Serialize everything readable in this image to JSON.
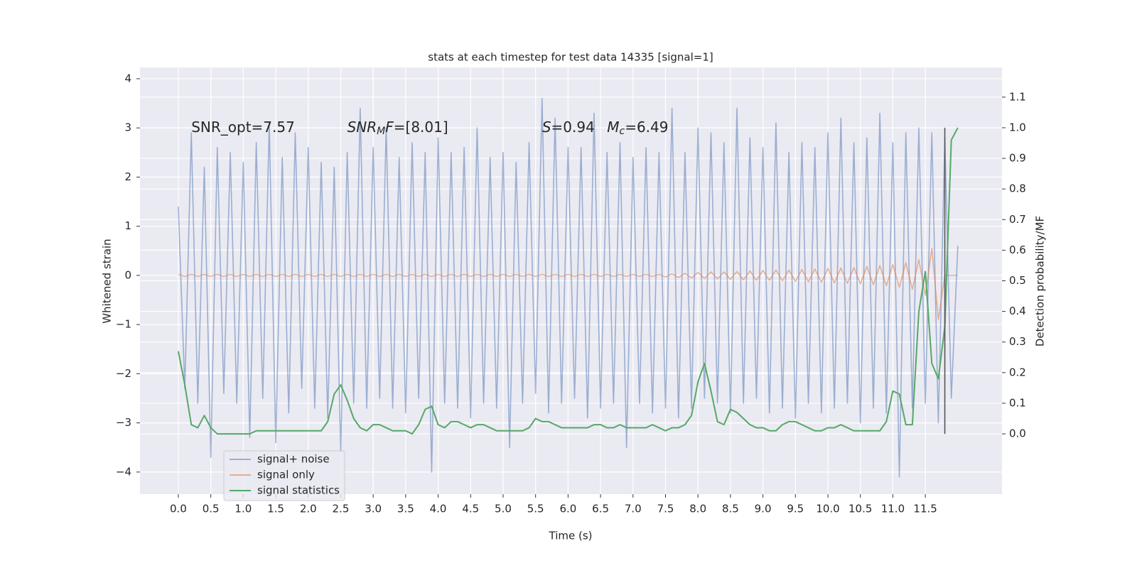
{
  "chart_data": {
    "type": "line",
    "title": "stats at each timestep for test data 14335 [signal=1]",
    "xlabel": "Time (s)",
    "ylabel": "Whitened strain",
    "y2label": "Detection probability/MF",
    "x": [
      0,
      0.1,
      0.2,
      0.3,
      0.4,
      0.5,
      0.6,
      0.7,
      0.8,
      0.9,
      1,
      1.1,
      1.2,
      1.3,
      1.4,
      1.5,
      1.6,
      1.7,
      1.8,
      1.9,
      2,
      2.1,
      2.2,
      2.3,
      2.4,
      2.5,
      2.6,
      2.7,
      2.8,
      2.9,
      3,
      3.1,
      3.2,
      3.3,
      3.4,
      3.5,
      3.6,
      3.7,
      3.8,
      3.9,
      4,
      4.1,
      4.2,
      4.3,
      4.4,
      4.5,
      4.6,
      4.7,
      4.8,
      4.9,
      5,
      5.1,
      5.2,
      5.3,
      5.4,
      5.5,
      5.6,
      5.7,
      5.8,
      5.9,
      6,
      6.1,
      6.2,
      6.3,
      6.4,
      6.5,
      6.6,
      6.7,
      6.8,
      6.9,
      7,
      7.1,
      7.2,
      7.3,
      7.4,
      7.5,
      7.6,
      7.7,
      7.8,
      7.9,
      8,
      8.1,
      8.2,
      8.3,
      8.4,
      8.5,
      8.6,
      8.7,
      8.8,
      8.9,
      9,
      9.1,
      9.2,
      9.3,
      9.4,
      9.5,
      9.6,
      9.7,
      9.8,
      9.9,
      10,
      10.1,
      10.2,
      10.3,
      10.4,
      10.5,
      10.6,
      10.7,
      10.8,
      10.9,
      11,
      11.1,
      11.2,
      11.3,
      11.4,
      11.5,
      11.6,
      11.7,
      11.8,
      11.9,
      12
    ],
    "series": [
      {
        "name": "signal+ noise",
        "color": "#4c72b0",
        "opacity": 0.5,
        "values": [
          1.4,
          -2.3,
          2.9,
          -2.6,
          2.2,
          -3.7,
          2.6,
          -2.4,
          2.5,
          -2.6,
          2.3,
          -3.3,
          2.7,
          -2.5,
          3.1,
          -3.4,
          2.4,
          -2.8,
          2.9,
          -2.3,
          2.6,
          -2.7,
          2.3,
          -2.9,
          2.2,
          -3.6,
          2.5,
          -2.6,
          3.4,
          -2.7,
          2.6,
          -2.5,
          3.0,
          -2.7,
          2.4,
          -2.8,
          2.7,
          -2.5,
          2.5,
          -4.0,
          2.8,
          -2.6,
          2.5,
          -2.7,
          2.6,
          -2.9,
          3.0,
          -2.6,
          2.4,
          -2.7,
          2.5,
          -3.5,
          2.3,
          -2.6,
          2.7,
          -2.4,
          3.6,
          -2.8,
          3.2,
          -2.6,
          2.6,
          -2.5,
          2.6,
          -2.9,
          3.3,
          -2.7,
          2.5,
          -2.6,
          2.7,
          -3.5,
          2.4,
          -2.6,
          2.6,
          -2.8,
          2.5,
          -2.7,
          3.4,
          -2.9,
          2.5,
          -2.7,
          3.0,
          -2.5,
          2.9,
          -2.6,
          2.7,
          -2.8,
          3.4,
          -2.6,
          2.8,
          -2.5,
          2.6,
          -2.8,
          3.1,
          -2.7,
          2.5,
          -2.9,
          2.7,
          -2.6,
          2.6,
          -2.8,
          2.9,
          -2.7,
          3.2,
          -2.6,
          2.7,
          -3.0,
          2.8,
          -2.7,
          3.3,
          -2.8,
          2.7,
          -4.1,
          2.9,
          -2.7,
          3.0,
          -2.6,
          2.9,
          -3.0,
          2.8,
          -2.5,
          0.6
        ]
      },
      {
        "name": "signal only",
        "color": "#dd8452",
        "opacity": 0.6,
        "values": [
          0.02,
          -0.02,
          0.02,
          -0.02,
          0.02,
          -0.02,
          0.02,
          -0.02,
          0.02,
          -0.02,
          0.02,
          -0.02,
          0.02,
          -0.02,
          0.02,
          -0.02,
          0.02,
          -0.02,
          0.02,
          -0.02,
          0.02,
          -0.02,
          0.02,
          -0.02,
          0.02,
          -0.02,
          0.02,
          -0.02,
          0.02,
          -0.02,
          0.02,
          -0.02,
          0.02,
          -0.02,
          0.02,
          -0.02,
          0.02,
          -0.02,
          0.02,
          -0.02,
          0.02,
          -0.02,
          0.02,
          -0.02,
          0.02,
          -0.02,
          0.02,
          -0.02,
          0.02,
          -0.02,
          0.02,
          -0.02,
          0.02,
          -0.02,
          0.02,
          -0.02,
          0.02,
          -0.02,
          0.02,
          -0.02,
          0.02,
          -0.02,
          0.02,
          -0.02,
          0.02,
          -0.02,
          0.02,
          -0.02,
          0.02,
          -0.02,
          0.02,
          -0.02,
          0.02,
          -0.02,
          0.02,
          -0.03,
          0.03,
          -0.04,
          0.04,
          -0.05,
          0.06,
          -0.06,
          0.07,
          -0.07,
          0.07,
          -0.08,
          0.08,
          -0.09,
          0.09,
          -0.1,
          0.1,
          -0.1,
          0.11,
          -0.11,
          0.11,
          -0.12,
          0.12,
          -0.13,
          0.13,
          -0.14,
          0.14,
          -0.15,
          0.15,
          -0.16,
          0.16,
          -0.17,
          0.18,
          -0.19,
          0.2,
          -0.21,
          0.22,
          -0.24,
          0.26,
          -0.28,
          0.32,
          -0.4,
          0.55,
          -0.9,
          0,
          0,
          0
        ]
      },
      {
        "name": "signal statistics",
        "color": "#55a868",
        "opacity": 1,
        "axis": "y2",
        "values": [
          0.27,
          0.16,
          0.03,
          0.02,
          0.06,
          0.02,
          0,
          0,
          0,
          0,
          0,
          0,
          0.01,
          0.01,
          0.01,
          0.01,
          0.01,
          0.01,
          0.01,
          0.01,
          0.01,
          0.01,
          0.01,
          0.04,
          0.13,
          0.16,
          0.11,
          0.05,
          0.02,
          0.01,
          0.03,
          0.03,
          0.02,
          0.01,
          0.01,
          0.01,
          0,
          0.03,
          0.08,
          0.09,
          0.03,
          0.02,
          0.04,
          0.04,
          0.03,
          0.02,
          0.03,
          0.03,
          0.02,
          0.01,
          0.01,
          0.01,
          0.01,
          0.01,
          0.02,
          0.05,
          0.04,
          0.04,
          0.03,
          0.02,
          0.02,
          0.02,
          0.02,
          0.02,
          0.03,
          0.03,
          0.02,
          0.02,
          0.03,
          0.02,
          0.02,
          0.02,
          0.02,
          0.03,
          0.02,
          0.01,
          0.02,
          0.02,
          0.03,
          0.06,
          0.17,
          0.23,
          0.14,
          0.04,
          0.03,
          0.08,
          0.07,
          0.05,
          0.03,
          0.02,
          0.02,
          0.01,
          0.01,
          0.03,
          0.04,
          0.04,
          0.03,
          0.02,
          0.01,
          0.01,
          0.02,
          0.02,
          0.03,
          0.02,
          0.01,
          0.01,
          0.01,
          0.01,
          0.01,
          0.04,
          0.14,
          0.13,
          0.03,
          0.03,
          0.4,
          0.53,
          0.23,
          0.18,
          0.35,
          0.96,
          1
        ]
      }
    ],
    "vline": {
      "x": 11.8,
      "ymin": 0,
      "ymax": 1,
      "axis": "y2",
      "color": "#555555"
    },
    "annotations": [
      {
        "x": 0.2,
        "y": 3,
        "parts": [
          {
            "text": "SNR_opt=7.57",
            "style": "normal"
          }
        ]
      },
      {
        "x": 2.6,
        "y": 3,
        "parts": [
          {
            "text": "SNR",
            "style": "italic"
          },
          {
            "text": "M",
            "style": "sub"
          },
          {
            "text": "F",
            "style": "italic"
          },
          {
            "text": "=[8.01]",
            "style": "normal"
          }
        ]
      },
      {
        "x": 5.6,
        "y": 3,
        "parts": [
          {
            "text": "S",
            "style": "italic"
          },
          {
            "text": "=0.94",
            "style": "normal"
          }
        ]
      },
      {
        "x": 6.6,
        "y": 3,
        "parts": [
          {
            "text": "M",
            "style": "italic"
          },
          {
            "text": "c",
            "style": "sub"
          },
          {
            "text": "=6.49",
            "style": "normal"
          }
        ]
      }
    ],
    "xlim": [
      -0.59,
      12.68
    ],
    "ylim": [
      -4.45,
      4.23
    ],
    "y2lim": [
      -0.197,
      1.197
    ],
    "xticks": [
      {
        "value": 0,
        "label": "0.0"
      },
      0.5,
      {
        "value": 1,
        "label": "1.0"
      },
      1.5,
      {
        "value": 2,
        "label": "2.0"
      },
      2.5,
      {
        "value": 3,
        "label": "3.0"
      },
      3.5,
      {
        "value": 4,
        "label": "4.0"
      },
      4.5,
      {
        "value": 5,
        "label": "5.0"
      },
      5.5,
      {
        "value": 6,
        "label": "6.0"
      },
      6.5,
      {
        "value": 7,
        "label": "7.0"
      },
      7.5,
      {
        "value": 8,
        "label": "8.0"
      },
      8.5,
      {
        "value": 9,
        "label": "9.0"
      },
      9.5,
      {
        "value": 10,
        "label": "10.0"
      },
      10.5,
      {
        "value": 11,
        "label": "11.0"
      },
      11.5
    ],
    "yticks": [
      {
        "value": -4,
        "label": "−4"
      },
      {
        "value": -3,
        "label": "−3"
      },
      {
        "value": -2,
        "label": "−2"
      },
      {
        "value": -1,
        "label": "−1"
      },
      0,
      1,
      2,
      3,
      4
    ],
    "y2ticks": [
      {
        "value": 0,
        "label": "0.0"
      },
      0.1,
      0.2,
      0.3,
      0.4,
      0.5,
      0.6,
      0.7,
      0.8,
      0.9,
      {
        "value": 1,
        "label": "1.0"
      },
      1.1
    ],
    "grid": true,
    "legend": "lower left"
  }
}
